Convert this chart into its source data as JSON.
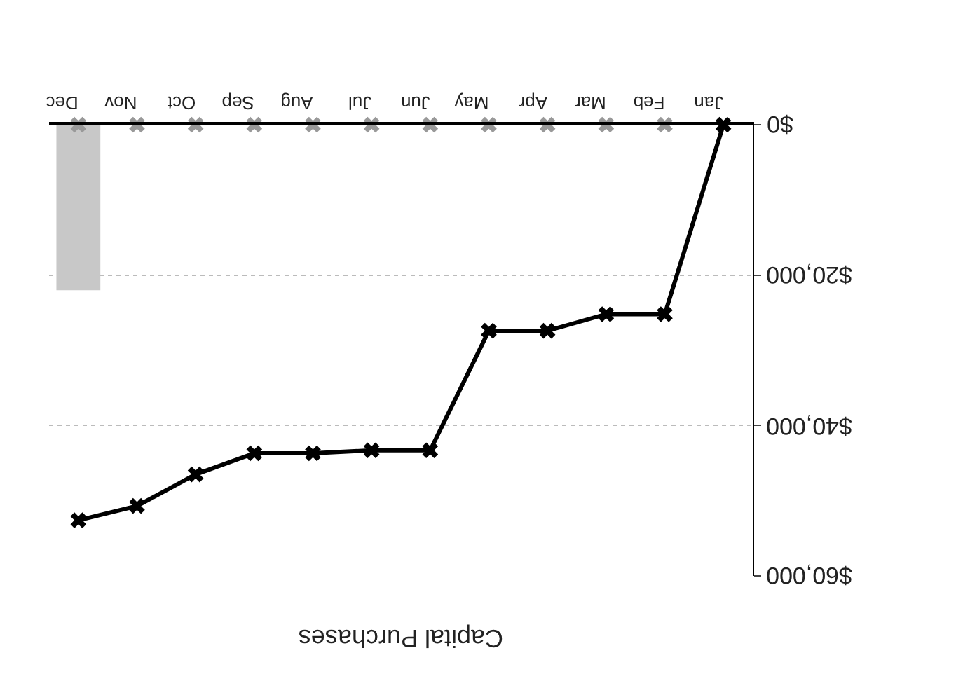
{
  "chart_data": {
    "type": "line",
    "title": "Capital Purchases",
    "categories": [
      "Dec",
      "Nov",
      "Oct",
      "Sep",
      "Aug",
      "Jul",
      "Jun",
      "May",
      "Apr",
      "Mar",
      "Feb",
      "Jan"
    ],
    "series": [
      {
        "type": "bar",
        "color": "#c8c8c8",
        "values": [
          22000,
          null,
          null,
          null,
          null,
          null,
          null,
          null,
          null,
          null,
          null,
          null
        ]
      },
      {
        "type": "scatter",
        "color": "#999999",
        "marker": "cross",
        "values": [
          0,
          0,
          0,
          0,
          0,
          0,
          0,
          0,
          0,
          0,
          0,
          null
        ]
      },
      {
        "color": "#000000",
        "marker": "cross",
        "values": [
          52600,
          50700,
          46500,
          43700,
          43700,
          43300,
          43300,
          27400,
          27400,
          25200,
          25200,
          0
        ]
      }
    ],
    "ylim": [
      60000,
      0
    ],
    "yticks": [
      {
        "value": 0,
        "label": "$0"
      },
      {
        "value": 20000,
        "label": "$20,000"
      },
      {
        "value": 40000,
        "label": "$40,000"
      },
      {
        "value": 60000,
        "label": "$60,000"
      }
    ],
    "grid": "y"
  }
}
